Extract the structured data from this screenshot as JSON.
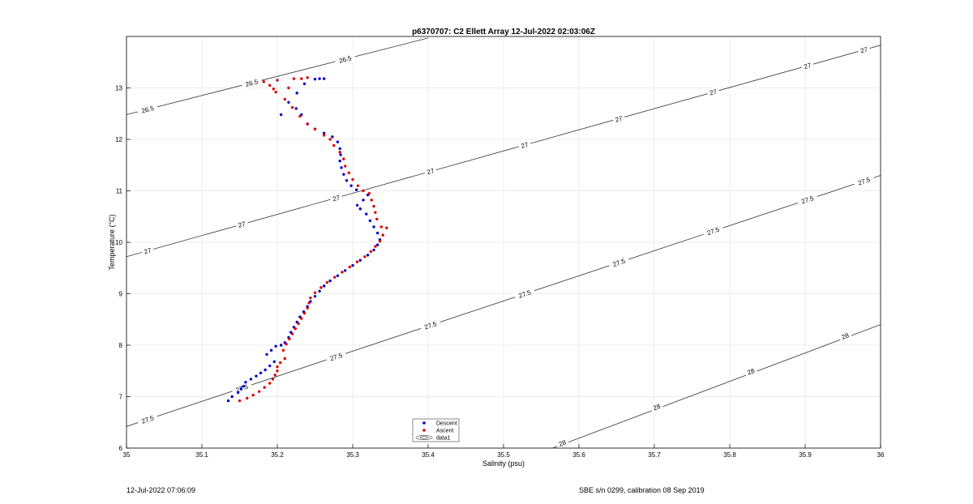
{
  "chart_data": {
    "type": "scatter",
    "title": "p6370707: C2 Ellett Array 12-Jul-2022 02:03:06Z",
    "xlabel": "Salinity (psu)",
    "ylabel": "Temperature (°C)",
    "xlim": [
      35,
      36
    ],
    "ylim": [
      6,
      14
    ],
    "xticks": [
      35,
      35.1,
      35.2,
      35.3,
      35.4,
      35.5,
      35.6,
      35.7,
      35.8,
      35.9,
      36
    ],
    "xtick_labels": [
      "35",
      "35.1",
      "35.2",
      "35.3",
      "35.4",
      "35.5",
      "35.6",
      "35.7",
      "35.8",
      "35.9",
      "36"
    ],
    "yticks": [
      6,
      7,
      8,
      9,
      10,
      11,
      12,
      13
    ],
    "ytick_labels": [
      "6",
      "7",
      "8",
      "9",
      "10",
      "11",
      "12",
      "13"
    ],
    "grid": true,
    "legend_position": "bottom-center",
    "legend": [
      "Descent",
      "Ascent",
      "data1"
    ],
    "series": [
      {
        "name": "Descent",
        "color": "#0000cc",
        "points": [
          [
            35.135,
            6.92
          ],
          [
            35.14,
            7.0
          ],
          [
            35.148,
            7.08
          ],
          [
            35.152,
            7.15
          ],
          [
            35.155,
            7.2
          ],
          [
            35.158,
            7.28
          ],
          [
            35.165,
            7.34
          ],
          [
            35.172,
            7.4
          ],
          [
            35.178,
            7.46
          ],
          [
            35.184,
            7.52
          ],
          [
            35.19,
            7.6
          ],
          [
            35.196,
            7.68
          ],
          [
            35.186,
            7.82
          ],
          [
            35.192,
            7.9
          ],
          [
            35.198,
            7.98
          ],
          [
            35.205,
            8.0
          ],
          [
            35.21,
            8.05
          ],
          [
            35.215,
            8.15
          ],
          [
            35.218,
            8.25
          ],
          [
            35.222,
            8.35
          ],
          [
            35.226,
            8.45
          ],
          [
            35.23,
            8.55
          ],
          [
            35.235,
            8.65
          ],
          [
            35.24,
            8.75
          ],
          [
            35.244,
            8.85
          ],
          [
            35.25,
            8.95
          ],
          [
            35.256,
            9.05
          ],
          [
            35.262,
            9.15
          ],
          [
            35.27,
            9.25
          ],
          [
            35.28,
            9.35
          ],
          [
            35.29,
            9.45
          ],
          [
            35.3,
            9.55
          ],
          [
            35.31,
            9.65
          ],
          [
            35.32,
            9.75
          ],
          [
            35.328,
            9.85
          ],
          [
            35.333,
            9.95
          ],
          [
            35.336,
            10.05
          ],
          [
            35.333,
            10.18
          ],
          [
            35.328,
            10.3
          ],
          [
            35.323,
            10.42
          ],
          [
            35.318,
            10.55
          ],
          [
            35.31,
            10.65
          ],
          [
            35.306,
            10.72
          ],
          [
            35.314,
            10.82
          ],
          [
            35.32,
            10.92
          ],
          [
            35.305,
            11.02
          ],
          [
            35.298,
            11.1
          ],
          [
            35.292,
            11.2
          ],
          [
            35.288,
            11.32
          ],
          [
            35.285,
            11.45
          ],
          [
            35.283,
            11.58
          ],
          [
            35.284,
            11.7
          ],
          [
            35.283,
            11.82
          ],
          [
            35.28,
            11.95
          ],
          [
            35.273,
            12.05
          ],
          [
            35.262,
            12.12
          ],
          [
            35.25,
            12.2
          ],
          [
            35.24,
            12.3
          ],
          [
            35.232,
            12.48
          ],
          [
            35.225,
            12.6
          ],
          [
            35.215,
            12.72
          ],
          [
            35.205,
            12.48
          ],
          [
            35.226,
            12.9
          ],
          [
            35.236,
            13.08
          ],
          [
            35.25,
            13.17
          ],
          [
            35.256,
            13.18
          ],
          [
            35.262,
            13.18
          ]
        ]
      },
      {
        "name": "Ascent",
        "color": "#dd0000",
        "points": [
          [
            35.15,
            6.92
          ],
          [
            35.16,
            6.97
          ],
          [
            35.168,
            7.03
          ],
          [
            35.176,
            7.1
          ],
          [
            35.183,
            7.18
          ],
          [
            35.19,
            7.26
          ],
          [
            35.194,
            7.34
          ],
          [
            35.197,
            7.42
          ],
          [
            35.2,
            7.5
          ],
          [
            35.2,
            7.58
          ],
          [
            35.204,
            7.66
          ],
          [
            35.21,
            7.74
          ],
          [
            35.208,
            7.9
          ],
          [
            35.212,
            8.02
          ],
          [
            35.216,
            8.12
          ],
          [
            35.22,
            8.22
          ],
          [
            35.224,
            8.32
          ],
          [
            35.228,
            8.42
          ],
          [
            35.232,
            8.52
          ],
          [
            35.236,
            8.62
          ],
          [
            35.24,
            8.72
          ],
          [
            35.242,
            8.82
          ],
          [
            35.244,
            8.92
          ],
          [
            35.25,
            9.02
          ],
          [
            35.258,
            9.12
          ],
          [
            35.266,
            9.22
          ],
          [
            35.276,
            9.32
          ],
          [
            35.286,
            9.42
          ],
          [
            35.296,
            9.52
          ],
          [
            35.306,
            9.62
          ],
          [
            35.316,
            9.72
          ],
          [
            35.324,
            9.82
          ],
          [
            35.33,
            9.92
          ],
          [
            35.336,
            10.02
          ],
          [
            35.34,
            10.14
          ],
          [
            35.345,
            10.28
          ],
          [
            35.338,
            10.3
          ],
          [
            35.332,
            10.45
          ],
          [
            35.33,
            10.58
          ],
          [
            35.328,
            10.7
          ],
          [
            35.325,
            10.82
          ],
          [
            35.322,
            10.95
          ],
          [
            35.314,
            11.0
          ],
          [
            35.307,
            11.1
          ],
          [
            35.3,
            11.22
          ],
          [
            35.295,
            11.35
          ],
          [
            35.29,
            11.48
          ],
          [
            35.288,
            11.62
          ],
          [
            35.283,
            11.75
          ],
          [
            35.275,
            11.88
          ],
          [
            35.27,
            12.0
          ],
          [
            35.262,
            12.08
          ],
          [
            35.25,
            12.2
          ],
          [
            35.24,
            12.3
          ],
          [
            35.23,
            12.45
          ],
          [
            35.22,
            12.62
          ],
          [
            35.21,
            12.78
          ],
          [
            35.198,
            12.92
          ],
          [
            35.19,
            13.05
          ],
          [
            35.182,
            13.12
          ],
          [
            35.2,
            13.15
          ],
          [
            35.222,
            13.18
          ],
          [
            35.232,
            13.18
          ],
          [
            35.24,
            13.2
          ],
          [
            35.215,
            13.0
          ],
          [
            35.195,
            12.98
          ]
        ]
      }
    ],
    "contours": [
      {
        "label": "26.5",
        "points": [
          [
            35.0,
            12.48
          ],
          [
            35.4,
            13.97
          ]
        ],
        "labels_at": [
          [
            35.028,
            12.585
          ],
          [
            35.166,
            13.1
          ],
          [
            35.29,
            13.56
          ]
        ]
      },
      {
        "label": "27",
        "points": [
          [
            35.0,
            9.72
          ],
          [
            36.0,
            13.83
          ]
        ],
        "labels_at": [
          [
            35.028,
            9.835
          ],
          [
            35.153,
            10.35
          ],
          [
            35.278,
            10.86
          ],
          [
            35.403,
            11.38
          ],
          [
            35.528,
            11.89
          ],
          [
            35.653,
            12.4
          ],
          [
            35.778,
            12.92
          ],
          [
            35.903,
            13.43
          ],
          [
            35.978,
            13.74
          ]
        ]
      },
      {
        "label": "27.5",
        "points": [
          [
            35.0,
            6.42
          ],
          [
            36.0,
            11.3
          ]
        ],
        "labels_at": [
          [
            35.028,
            6.557
          ],
          [
            35.153,
            7.167
          ],
          [
            35.278,
            7.777
          ],
          [
            35.403,
            8.388
          ],
          [
            35.528,
            8.998
          ],
          [
            35.653,
            9.608
          ],
          [
            35.778,
            10.22
          ],
          [
            35.903,
            10.83
          ],
          [
            35.978,
            11.19
          ]
        ]
      },
      {
        "label": "28",
        "points": [
          [
            35.565,
            6.0
          ],
          [
            36.0,
            8.4
          ]
        ],
        "labels_at": [
          [
            35.578,
            6.1
          ],
          [
            35.703,
            6.8
          ],
          [
            35.828,
            7.49
          ],
          [
            35.953,
            8.18
          ]
        ]
      }
    ]
  },
  "footer": {
    "left": "12-Jul-2022 07:06:09",
    "right": "SBE s/n 0299, calibration 08 Sep 2019"
  }
}
